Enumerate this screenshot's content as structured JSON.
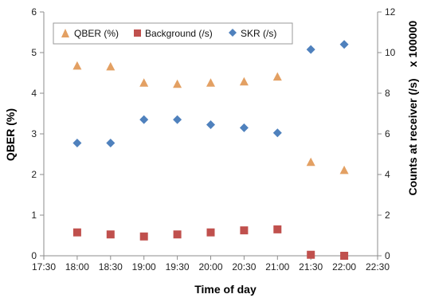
{
  "chart_data": {
    "type": "scatter",
    "title": "",
    "xlabel": "Time of day",
    "ylabel_left": "QBER (%)",
    "ylabel_right": "Counts at receiver (/s)",
    "right_multiplier": "x 100000",
    "x_categories": [
      "17:30",
      "18:00",
      "18:30",
      "19:00",
      "19:30",
      "20:00",
      "20:30",
      "21:00",
      "21:30",
      "22:00",
      "22:30"
    ],
    "ylim_left": [
      0,
      6
    ],
    "yticks_left": [
      "0",
      "1",
      "2",
      "3",
      "4",
      "5",
      "6"
    ],
    "ylim_right": [
      0,
      12
    ],
    "yticks_right": [
      "0",
      "2",
      "4",
      "6",
      "8",
      "10",
      "12"
    ],
    "legend_position": "top-left",
    "grid": false,
    "series": [
      {
        "name": "QBER (%)",
        "axis": "left",
        "marker": "triangle",
        "color": "#E3A063",
        "x": [
          "18:00",
          "18:30",
          "19:00",
          "19:30",
          "20:00",
          "20:30",
          "21:00",
          "21:30",
          "22:00"
        ],
        "values": [
          4.67,
          4.65,
          4.25,
          4.22,
          4.25,
          4.28,
          4.4,
          2.3,
          2.1
        ]
      },
      {
        "name": "Background (/s)",
        "axis": "right",
        "marker": "square",
        "color": "#C0504D",
        "x": [
          "18:00",
          "18:30",
          "19:00",
          "19:30",
          "20:00",
          "20:30",
          "21:00",
          "21:30",
          "22:00"
        ],
        "values": [
          1.15,
          1.05,
          0.95,
          1.05,
          1.15,
          1.25,
          1.3,
          0.05,
          0.0
        ]
      },
      {
        "name": "SKR (/s)",
        "axis": "right",
        "marker": "diamond",
        "color": "#4F81BD",
        "x": [
          "18:00",
          "18:30",
          "19:00",
          "19:30",
          "20:00",
          "20:30",
          "21:00",
          "21:30",
          "22:00"
        ],
        "values": [
          5.55,
          5.55,
          6.7,
          6.7,
          6.45,
          6.3,
          6.05,
          10.15,
          10.4
        ]
      }
    ]
  }
}
